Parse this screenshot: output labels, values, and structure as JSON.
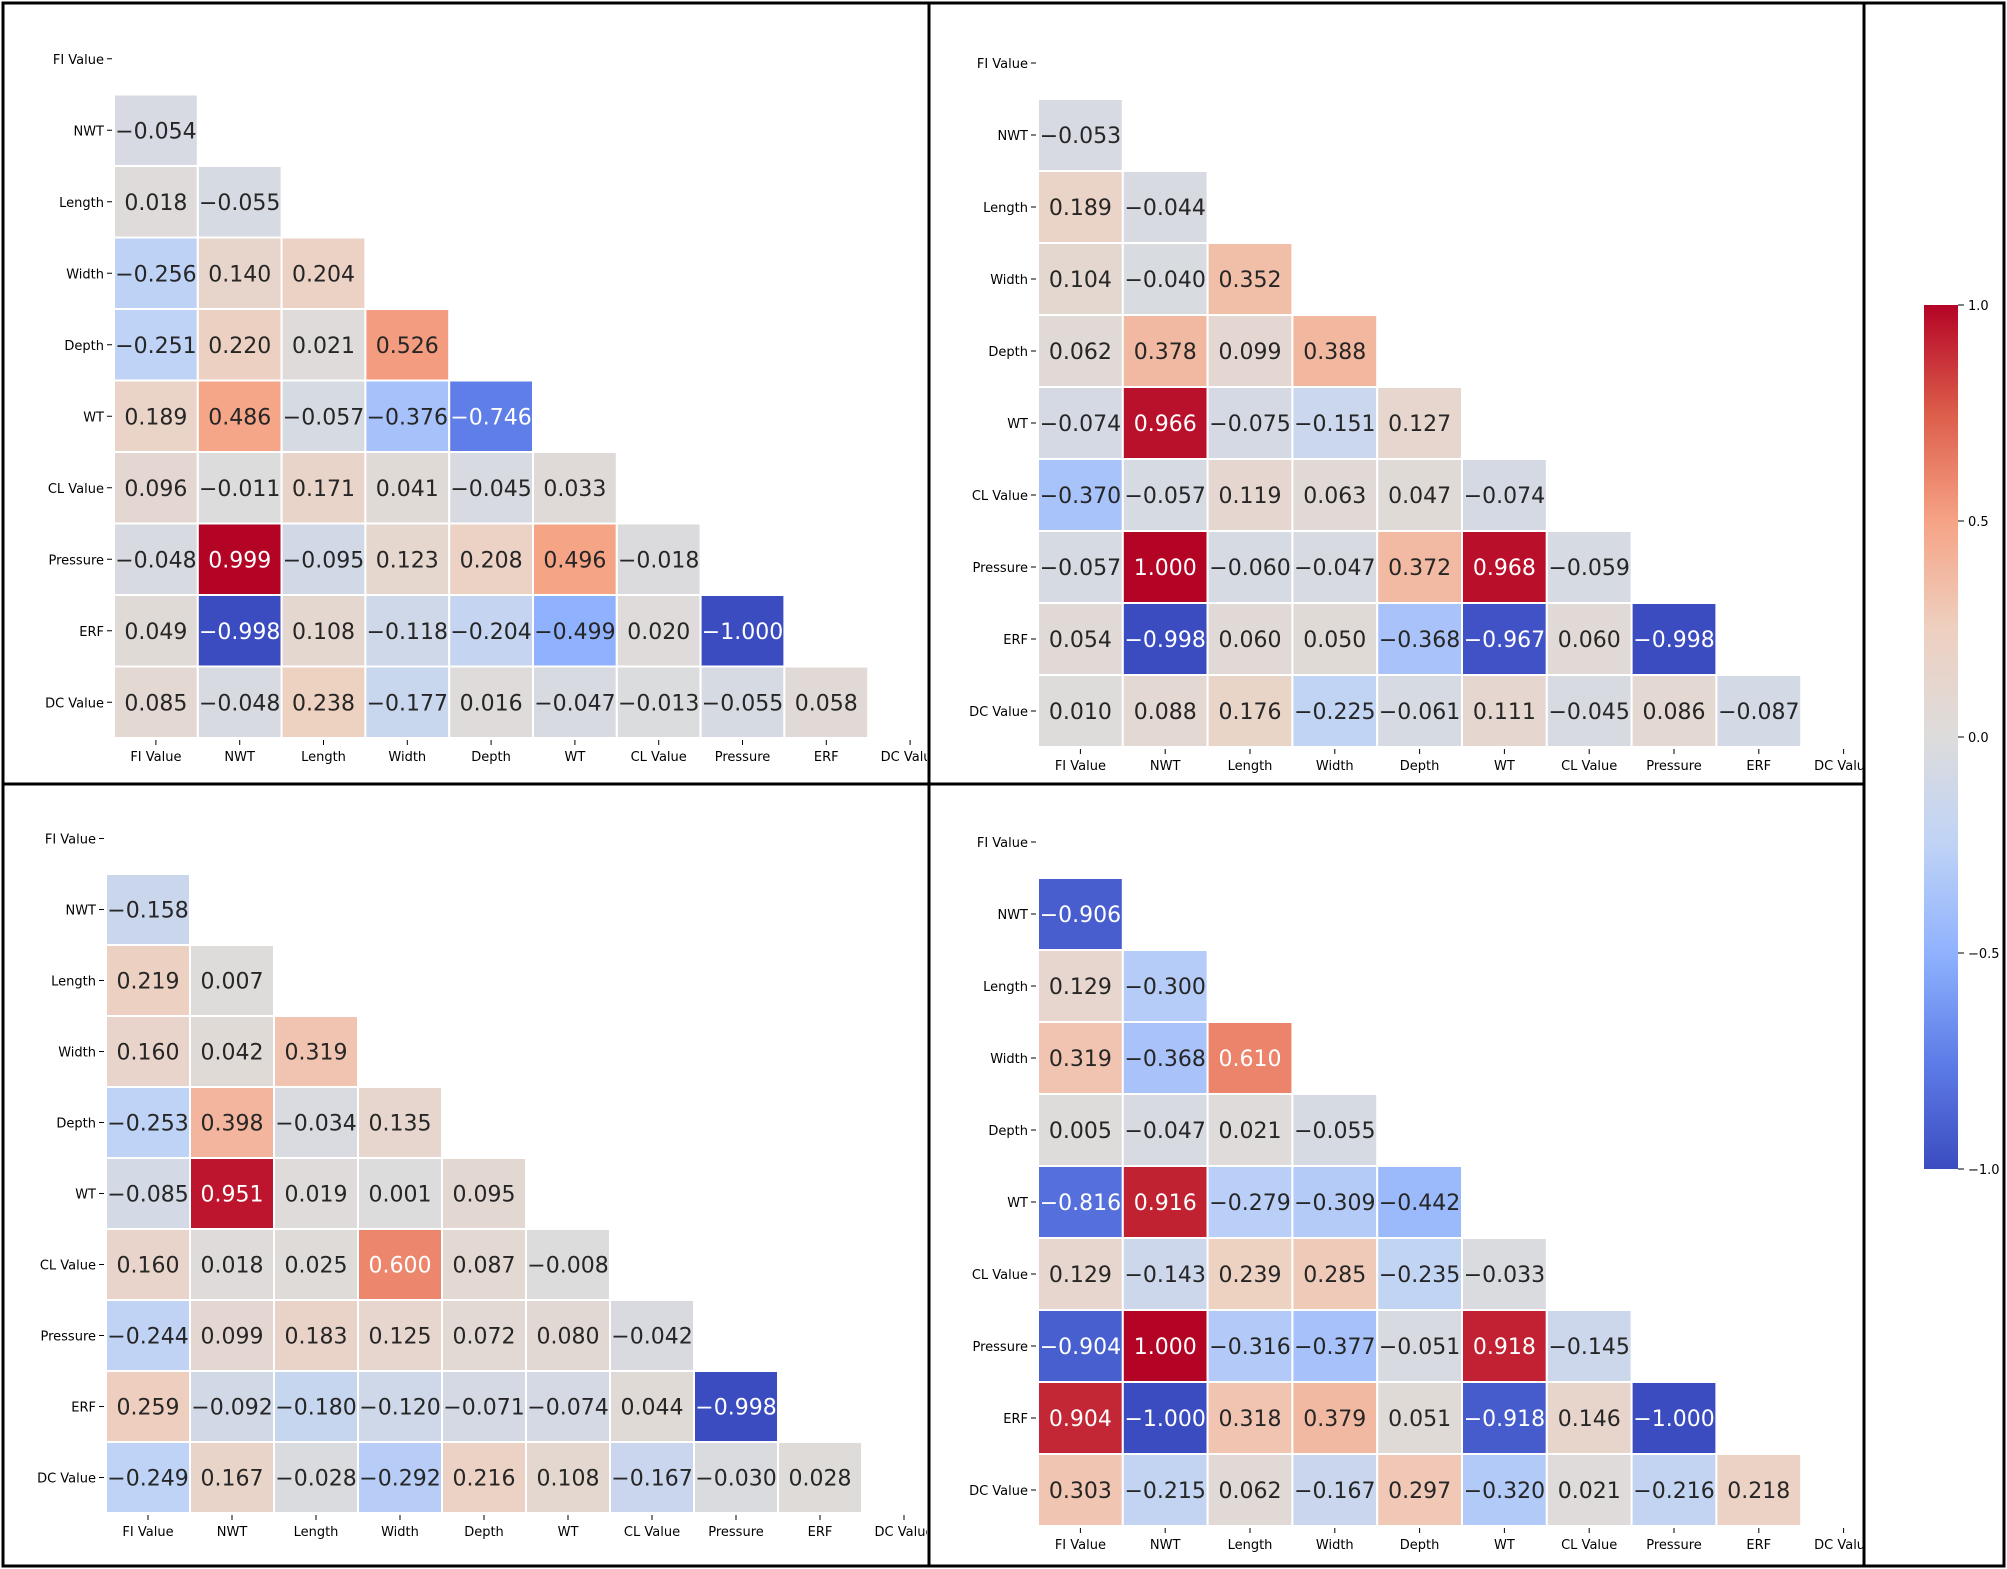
{
  "chart_data": [
    {
      "type": "heatmap",
      "panel": "top-left",
      "mask": "lower-triangle",
      "labels": [
        "FI Value",
        "NWT",
        "Length",
        "Width",
        "Depth",
        "WT",
        "CL Value",
        "Pressure",
        "ERF",
        "DC Value"
      ],
      "rows": [
        [],
        [
          -0.054
        ],
        [
          0.018,
          -0.055
        ],
        [
          -0.256,
          0.14,
          0.204
        ],
        [
          -0.251,
          0.22,
          0.021,
          0.526
        ],
        [
          0.189,
          0.486,
          -0.057,
          -0.376,
          -0.746
        ],
        [
          0.096,
          -0.011,
          0.171,
          0.041,
          -0.045,
          0.033
        ],
        [
          -0.048,
          0.999,
          -0.095,
          0.123,
          0.208,
          0.496,
          -0.018
        ],
        [
          0.049,
          -0.998,
          0.108,
          -0.118,
          -0.204,
          -0.499,
          0.02,
          -1.0
        ],
        [
          0.085,
          -0.048,
          0.238,
          -0.177,
          0.016,
          -0.047,
          -0.013,
          -0.055,
          0.058
        ]
      ]
    },
    {
      "type": "heatmap",
      "panel": "top-right",
      "mask": "lower-triangle",
      "labels": [
        "FI Value",
        "NWT",
        "Length",
        "Width",
        "Depth",
        "WT",
        "CL Value",
        "Pressure",
        "ERF",
        "DC Value"
      ],
      "rows": [
        [],
        [
          -0.053
        ],
        [
          0.189,
          -0.044
        ],
        [
          0.104,
          -0.04,
          0.352
        ],
        [
          0.062,
          0.378,
          0.099,
          0.388
        ],
        [
          -0.074,
          0.966,
          -0.075,
          -0.151,
          0.127
        ],
        [
          -0.37,
          -0.057,
          0.119,
          0.063,
          0.047,
          -0.074
        ],
        [
          -0.057,
          1.0,
          -0.06,
          -0.047,
          0.372,
          0.968,
          -0.059
        ],
        [
          0.054,
          -0.998,
          0.06,
          0.05,
          -0.368,
          -0.967,
          0.06,
          -0.998
        ],
        [
          0.01,
          0.088,
          0.176,
          -0.225,
          -0.061,
          0.111,
          -0.045,
          0.086,
          -0.087
        ]
      ]
    },
    {
      "type": "heatmap",
      "panel": "bottom-left",
      "mask": "lower-triangle",
      "labels": [
        "FI Value",
        "NWT",
        "Length",
        "Width",
        "Depth",
        "WT",
        "CL Value",
        "Pressure",
        "ERF",
        "DC Value"
      ],
      "rows": [
        [],
        [
          -0.158
        ],
        [
          0.219,
          0.007
        ],
        [
          0.16,
          0.042,
          0.319
        ],
        [
          -0.253,
          0.398,
          -0.034,
          0.135
        ],
        [
          -0.085,
          0.951,
          0.019,
          0.001,
          0.095
        ],
        [
          0.16,
          0.018,
          0.025,
          0.6,
          0.087,
          -0.008
        ],
        [
          -0.244,
          0.099,
          0.183,
          0.125,
          0.072,
          0.08,
          -0.042
        ],
        [
          0.259,
          -0.092,
          -0.18,
          -0.12,
          -0.071,
          -0.074,
          0.044,
          -0.998
        ],
        [
          -0.249,
          0.167,
          -0.028,
          -0.292,
          0.216,
          0.108,
          -0.167,
          -0.03,
          0.028
        ]
      ]
    },
    {
      "type": "heatmap",
      "panel": "bottom-right",
      "mask": "lower-triangle",
      "labels": [
        "FI Value",
        "NWT",
        "Length",
        "Width",
        "Depth",
        "WT",
        "CL Value",
        "Pressure",
        "ERF",
        "DC Value"
      ],
      "rows": [
        [],
        [
          -0.906
        ],
        [
          0.129,
          -0.3
        ],
        [
          0.319,
          -0.368,
          0.61
        ],
        [
          0.005,
          -0.047,
          0.021,
          -0.055
        ],
        [
          -0.816,
          0.916,
          -0.279,
          -0.309,
          -0.442
        ],
        [
          0.129,
          -0.143,
          0.239,
          0.285,
          -0.235,
          -0.033
        ],
        [
          -0.904,
          1.0,
          -0.316,
          -0.377,
          -0.051,
          0.918,
          -0.145
        ],
        [
          0.904,
          -1.0,
          0.318,
          0.379,
          0.051,
          -0.918,
          0.146,
          -1.0
        ],
        [
          0.303,
          -0.215,
          0.062,
          -0.167,
          0.297,
          -0.32,
          0.021,
          -0.216,
          0.218
        ]
      ]
    }
  ],
  "colorbar": {
    "colormap": "coolwarm",
    "range": [
      -1.0,
      1.0
    ],
    "ticks": [
      1.0,
      0.5,
      0.0,
      -0.5,
      -1.0
    ],
    "tick_labels": [
      "1.0",
      "0.5",
      "0.0",
      "−0.5",
      "−1.0"
    ]
  }
}
